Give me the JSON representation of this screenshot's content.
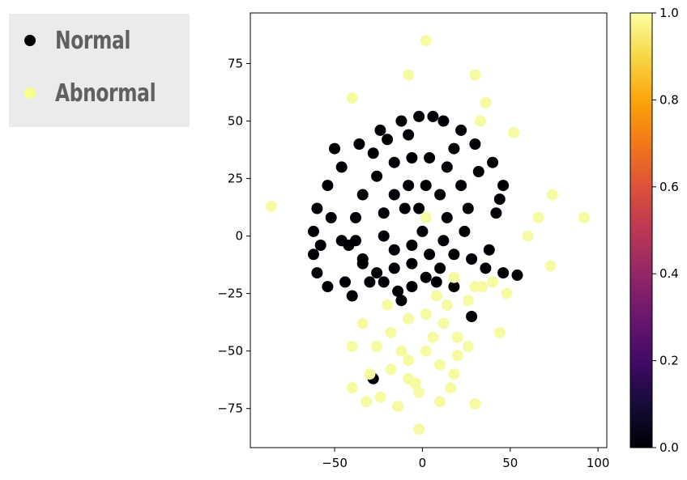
{
  "legend": {
    "items": [
      {
        "label": "Normal",
        "color": "#000000"
      },
      {
        "label": "Abnormal",
        "color": "#f5ff8a"
      }
    ]
  },
  "colors": {
    "normal": "#000004",
    "abnormal": "#f6fba2",
    "axis": "#000000"
  },
  "chart_data": {
    "type": "scatter",
    "title": "",
    "xlabel": "",
    "ylabel": "",
    "xlim": [
      -98,
      105
    ],
    "ylim": [
      -92,
      97
    ],
    "xticks": [
      -50,
      0,
      50,
      100
    ],
    "yticks": [
      -75,
      -50,
      -25,
      0,
      25,
      50,
      75
    ],
    "grid": false,
    "colorbar": {
      "colormap": "inferno",
      "range": [
        0.0,
        1.0
      ],
      "ticks": [
        "0.0",
        "0.2",
        "0.4",
        "0.6",
        "0.8",
        "1.0"
      ]
    },
    "series": [
      {
        "name": "Normal",
        "value": 0,
        "points": [
          [
            -2,
            52
          ],
          [
            6,
            52
          ],
          [
            -12,
            50
          ],
          [
            12,
            50
          ],
          [
            -24,
            46
          ],
          [
            22,
            46
          ],
          [
            -36,
            40
          ],
          [
            30,
            40
          ],
          [
            -46,
            30
          ],
          [
            40,
            32
          ],
          [
            -54,
            22
          ],
          [
            46,
            22
          ],
          [
            -60,
            12
          ],
          [
            -62,
            2
          ],
          [
            -62,
            -8
          ],
          [
            -60,
            -16
          ],
          [
            -54,
            -22
          ],
          [
            -44,
            -20
          ],
          [
            -40,
            -26
          ],
          [
            -34,
            -10
          ],
          [
            -30,
            -20
          ],
          [
            -22,
            -20
          ],
          [
            -14,
            -24
          ],
          [
            -6,
            -22
          ],
          [
            2,
            -18
          ],
          [
            10,
            -14
          ],
          [
            18,
            -8
          ],
          [
            24,
            2
          ],
          [
            26,
            12
          ],
          [
            22,
            22
          ],
          [
            14,
            30
          ],
          [
            4,
            34
          ],
          [
            -6,
            34
          ],
          [
            -16,
            32
          ],
          [
            -26,
            26
          ],
          [
            -34,
            18
          ],
          [
            -38,
            8
          ],
          [
            -38,
            -2
          ],
          [
            -34,
            -12
          ],
          [
            -26,
            -16
          ],
          [
            -16,
            -14
          ],
          [
            -6,
            -12
          ],
          [
            4,
            -8
          ],
          [
            12,
            -2
          ],
          [
            14,
            8
          ],
          [
            10,
            18
          ],
          [
            2,
            22
          ],
          [
            -8,
            22
          ],
          [
            -16,
            18
          ],
          [
            -22,
            10
          ],
          [
            -22,
            0
          ],
          [
            -16,
            -6
          ],
          [
            -6,
            -4
          ],
          [
            0,
            2
          ],
          [
            -2,
            12
          ],
          [
            -10,
            12
          ],
          [
            28,
            -10
          ],
          [
            38,
            -6
          ],
          [
            46,
            -16
          ],
          [
            54,
            -17
          ],
          [
            42,
            10
          ],
          [
            -50,
            38
          ],
          [
            -58,
            -4
          ],
          [
            -42,
            -4
          ],
          [
            -28,
            36
          ],
          [
            32,
            28
          ],
          [
            36,
            -14
          ],
          [
            28,
            -35
          ],
          [
            -28,
            -62
          ],
          [
            -12,
            -28
          ],
          [
            -46,
            -2
          ],
          [
            -52,
            8
          ],
          [
            18,
            -22
          ],
          [
            8,
            -20
          ],
          [
            -20,
            42
          ],
          [
            -8,
            44
          ],
          [
            18,
            38
          ],
          [
            44,
            16
          ]
        ]
      },
      {
        "name": "Abnormal",
        "value": 1,
        "points": [
          [
            2,
            85
          ],
          [
            -40,
            60
          ],
          [
            -8,
            70
          ],
          [
            30,
            70
          ],
          [
            36,
            58
          ],
          [
            33,
            50
          ],
          [
            52,
            45
          ],
          [
            -86,
            13
          ],
          [
            2,
            8
          ],
          [
            74,
            18
          ],
          [
            92,
            8
          ],
          [
            66,
            8
          ],
          [
            60,
            0
          ],
          [
            73,
            -13
          ],
          [
            18,
            -18
          ],
          [
            30,
            -22
          ],
          [
            40,
            -20
          ],
          [
            48,
            -25
          ],
          [
            26,
            -28
          ],
          [
            8,
            -26
          ],
          [
            -34,
            -38
          ],
          [
            -26,
            -48
          ],
          [
            -18,
            -42
          ],
          [
            -8,
            -36
          ],
          [
            2,
            -34
          ],
          [
            12,
            -38
          ],
          [
            20,
            -44
          ],
          [
            26,
            -48
          ],
          [
            44,
            -42
          ],
          [
            -40,
            -48
          ],
          [
            -30,
            -60
          ],
          [
            -18,
            -58
          ],
          [
            -8,
            -54
          ],
          [
            2,
            -50
          ],
          [
            10,
            -56
          ],
          [
            18,
            -60
          ],
          [
            -40,
            -66
          ],
          [
            -24,
            -70
          ],
          [
            -14,
            -74
          ],
          [
            -2,
            -68
          ],
          [
            10,
            -72
          ],
          [
            16,
            -66
          ],
          [
            30,
            -73
          ],
          [
            -2,
            -84
          ],
          [
            -12,
            -50
          ],
          [
            6,
            -44
          ],
          [
            -20,
            -30
          ],
          [
            14,
            -30
          ],
          [
            -4,
            -64
          ],
          [
            20,
            -52
          ],
          [
            34,
            -22
          ],
          [
            -32,
            -72
          ],
          [
            -8,
            -62
          ]
        ]
      }
    ]
  }
}
